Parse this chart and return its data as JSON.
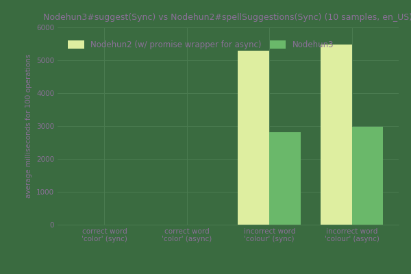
{
  "title": "Nodehun3#suggest(Sync) vs Nodehun2#spellSuggestions(Sync) (10 samples, en_US)",
  "legend_labels": [
    "Nodehun2 (w/ promise wrapper for async)",
    "Nodehun3"
  ],
  "legend_colors": [
    "#deeea0",
    "#6ab86a"
  ],
  "categories": [
    "correct word\n'color' (sync)",
    "correct word\n'color' (async)",
    "incorrect word\n'colour' (sync)",
    "incorrect word\n'colour' (async)"
  ],
  "series1_values": [
    5,
    5,
    5300,
    5480
  ],
  "series2_values": [
    5,
    5,
    2820,
    2980
  ],
  "ylim": [
    0,
    6000
  ],
  "yticks": [
    0,
    1000,
    2000,
    3000,
    4000,
    5000,
    6000
  ],
  "ylabel": "average milliseconds for 100 operations",
  "background_color": "#3a6b40",
  "title_color": "#8b7098",
  "label_color": "#8b7098",
  "tick_color": "#8b7098",
  "grid_color": "#4a7b50",
  "bar_width": 0.38,
  "title_fontsize": 9,
  "axis_label_fontsize": 7.5,
  "tick_fontsize": 7.5,
  "legend_fontsize": 8.5
}
